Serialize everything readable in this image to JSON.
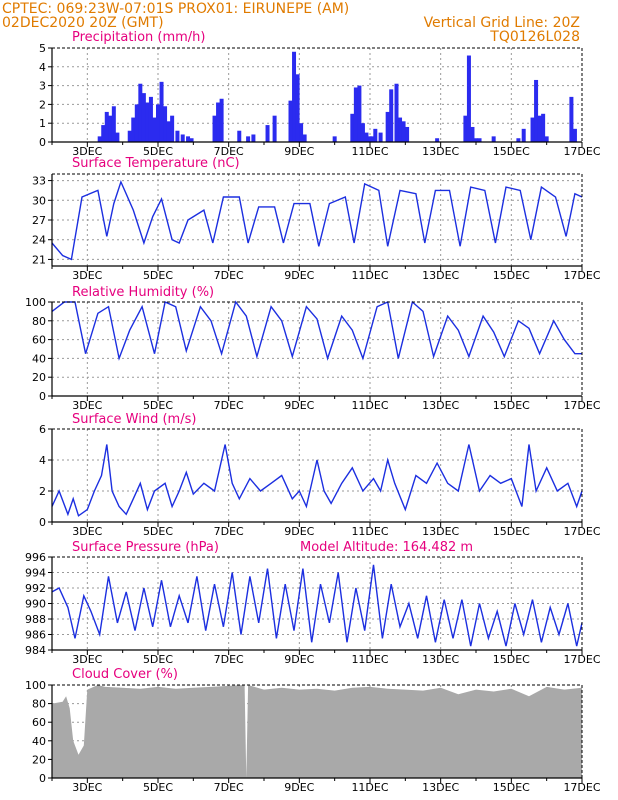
{
  "header": {
    "line1_left": "CPTEC:   069:23W-07:01S   PROX01: EIRUNEPE (AM)",
    "line2_left": "02DEC2020 20Z (GMT)",
    "line2_right": "Vertical Grid Line: 20Z",
    "line3_right": "TQ0126L028"
  },
  "x_axis": {
    "start_day": 2,
    "end_day": 17,
    "tick_labels": [
      "3DEC",
      "5DEC",
      "7DEC",
      "9DEC",
      "11DEC",
      "13DEC",
      "15DEC",
      "17DEC"
    ]
  },
  "colors": {
    "line": "#1c2fe0",
    "bar": "#2b2bef",
    "cloud": "#a9a9a9",
    "title": "#e6007e",
    "header": "#e07b00"
  },
  "chart_data": [
    {
      "type": "bar",
      "title": "Precipitation (mm/h)",
      "ylim": [
        0,
        5
      ],
      "yticks": [
        0,
        1,
        2,
        3,
        4,
        5
      ],
      "grid": true,
      "x_unit": "day of December 2020 (fractional)",
      "x": [
        3.35,
        3.45,
        3.55,
        3.65,
        3.75,
        3.85,
        4.2,
        4.3,
        4.4,
        4.5,
        4.6,
        4.7,
        4.8,
        4.9,
        5.0,
        5.1,
        5.2,
        5.3,
        5.4,
        5.55,
        5.7,
        5.85,
        5.95,
        6.6,
        6.7,
        6.8,
        7.3,
        7.55,
        7.7,
        8.1,
        8.3,
        8.75,
        8.85,
        8.95,
        9.05,
        9.15,
        10.0,
        10.5,
        10.6,
        10.7,
        10.8,
        10.9,
        11.0,
        11.05,
        11.15,
        11.3,
        11.5,
        11.6,
        11.75,
        11.85,
        11.95,
        12.05,
        12.9,
        13.7,
        13.8,
        13.9,
        14.0,
        14.1,
        14.5,
        15.2,
        15.35,
        15.6,
        15.7,
        15.8,
        15.9,
        16.0,
        16.7,
        16.8
      ],
      "values": [
        0.3,
        0.9,
        1.6,
        1.4,
        1.9,
        0.5,
        0.6,
        1.3,
        2.0,
        3.1,
        2.6,
        2.1,
        2.4,
        1.3,
        2.0,
        3.2,
        1.9,
        1.1,
        1.4,
        0.6,
        0.4,
        0.3,
        0.2,
        1.4,
        2.1,
        2.3,
        0.6,
        0.3,
        0.4,
        0.9,
        1.4,
        2.2,
        4.8,
        3.6,
        1.0,
        0.4,
        0.3,
        1.5,
        2.9,
        3.0,
        1.0,
        0.5,
        0.3,
        0.3,
        0.7,
        0.5,
        1.6,
        2.8,
        3.1,
        1.3,
        1.1,
        0.8,
        0.2,
        1.4,
        4.6,
        0.8,
        0.2,
        0.2,
        0.3,
        0.2,
        0.7,
        1.3,
        3.3,
        1.4,
        1.5,
        0.3,
        2.4,
        0.7
      ]
    },
    {
      "type": "line",
      "title": "Surface Temperature (nC)",
      "ylim": [
        20,
        34
      ],
      "yticks": [
        21,
        24,
        27,
        30,
        33
      ],
      "grid": true,
      "x": [
        2.0,
        2.3,
        2.55,
        2.85,
        3.3,
        3.55,
        3.75,
        3.95,
        4.3,
        4.6,
        4.85,
        5.1,
        5.4,
        5.6,
        5.85,
        6.3,
        6.55,
        6.85,
        7.3,
        7.55,
        7.85,
        8.3,
        8.55,
        8.85,
        9.3,
        9.55,
        9.85,
        10.3,
        10.55,
        10.85,
        11.25,
        11.5,
        11.85,
        12.3,
        12.55,
        12.85,
        13.25,
        13.55,
        13.85,
        14.25,
        14.55,
        14.85,
        15.25,
        15.55,
        15.85,
        16.25,
        16.55,
        16.8,
        17.0
      ],
      "values": [
        23.5,
        21.6,
        21.0,
        30.5,
        31.5,
        24.5,
        29.5,
        32.8,
        28.5,
        23.5,
        27.5,
        30.2,
        24.0,
        23.5,
        27.0,
        28.5,
        23.5,
        30.5,
        30.5,
        23.5,
        29.0,
        29.0,
        23.5,
        29.5,
        29.5,
        23.0,
        29.5,
        30.5,
        23.5,
        32.5,
        31.5,
        23.0,
        31.5,
        31.0,
        23.5,
        31.5,
        31.5,
        23.0,
        32.0,
        31.5,
        23.5,
        32.0,
        31.5,
        24.0,
        32.0,
        30.5,
        24.5,
        31.0,
        30.5
      ]
    },
    {
      "type": "line",
      "title": "Relative Humidity (%)",
      "ylim": [
        0,
        100
      ],
      "yticks": [
        0,
        20,
        40,
        60,
        80,
        100
      ],
      "grid": true,
      "x": [
        2.0,
        2.35,
        2.65,
        2.95,
        3.3,
        3.6,
        3.9,
        4.2,
        4.55,
        4.9,
        5.2,
        5.5,
        5.8,
        6.2,
        6.5,
        6.8,
        7.2,
        7.5,
        7.8,
        8.2,
        8.5,
        8.8,
        9.2,
        9.5,
        9.8,
        10.2,
        10.5,
        10.8,
        11.2,
        11.5,
        11.8,
        12.2,
        12.5,
        12.8,
        13.2,
        13.5,
        13.8,
        14.2,
        14.5,
        14.8,
        15.2,
        15.5,
        15.8,
        16.2,
        16.5,
        16.8,
        17.0
      ],
      "values": [
        90,
        100,
        100,
        45,
        88,
        95,
        40,
        70,
        95,
        45,
        100,
        95,
        48,
        95,
        80,
        45,
        100,
        85,
        42,
        95,
        80,
        42,
        95,
        82,
        40,
        85,
        70,
        40,
        95,
        100,
        40,
        100,
        90,
        42,
        85,
        70,
        42,
        85,
        68,
        42,
        80,
        72,
        45,
        80,
        60,
        45,
        45
      ]
    },
    {
      "type": "line",
      "title": "Surface Wind (m/s)",
      "ylim": [
        0,
        6
      ],
      "yticks": [
        0,
        2,
        4,
        6
      ],
      "grid": true,
      "x": [
        2.0,
        2.2,
        2.45,
        2.6,
        2.75,
        3.0,
        3.2,
        3.4,
        3.55,
        3.7,
        3.9,
        4.1,
        4.3,
        4.5,
        4.7,
        4.9,
        5.2,
        5.4,
        5.6,
        5.8,
        6.0,
        6.3,
        6.6,
        6.9,
        7.1,
        7.3,
        7.6,
        7.9,
        8.2,
        8.5,
        8.8,
        9.0,
        9.2,
        9.5,
        9.7,
        9.9,
        10.2,
        10.5,
        10.8,
        11.1,
        11.3,
        11.5,
        11.7,
        12.0,
        12.3,
        12.6,
        12.9,
        13.2,
        13.5,
        13.8,
        14.1,
        14.4,
        14.7,
        15.0,
        15.3,
        15.5,
        15.7,
        16.0,
        16.3,
        16.6,
        16.85,
        17.0
      ],
      "values": [
        1.0,
        2.0,
        0.5,
        1.5,
        0.4,
        0.8,
        2.0,
        3.0,
        5.0,
        2.0,
        1.0,
        0.5,
        1.5,
        2.5,
        0.8,
        2.0,
        2.5,
        1.0,
        2.0,
        3.2,
        1.8,
        2.5,
        2.0,
        5.0,
        2.5,
        1.5,
        2.8,
        2.0,
        2.5,
        3.0,
        1.5,
        2.0,
        1.0,
        4.0,
        2.0,
        1.2,
        2.5,
        3.5,
        2.0,
        2.8,
        2.0,
        4.0,
        2.5,
        0.8,
        3.0,
        2.5,
        3.8,
        2.5,
        2.0,
        5.0,
        2.0,
        3.0,
        2.5,
        2.8,
        1.0,
        5.0,
        2.0,
        3.5,
        2.0,
        2.5,
        1.0,
        2.0
      ]
    },
    {
      "type": "line",
      "title": "Surface Pressure (hPa)",
      "subtitle": "Model Altitude: 164.482 m",
      "ylim": [
        984,
        996
      ],
      "yticks": [
        984,
        986,
        988,
        990,
        992,
        994,
        996
      ],
      "grid": true,
      "x": [
        2.0,
        2.2,
        2.45,
        2.65,
        2.9,
        3.1,
        3.35,
        3.6,
        3.85,
        4.1,
        4.35,
        4.6,
        4.85,
        5.1,
        5.35,
        5.6,
        5.85,
        6.1,
        6.35,
        6.6,
        6.85,
        7.1,
        7.35,
        7.6,
        7.85,
        8.1,
        8.35,
        8.6,
        8.85,
        9.1,
        9.35,
        9.6,
        9.85,
        10.1,
        10.35,
        10.6,
        10.85,
        11.1,
        11.35,
        11.6,
        11.85,
        12.1,
        12.35,
        12.6,
        12.85,
        13.1,
        13.35,
        13.6,
        13.85,
        14.1,
        14.35,
        14.6,
        14.85,
        15.1,
        15.35,
        15.6,
        15.85,
        16.1,
        16.35,
        16.6,
        16.85,
        17.0
      ],
      "values": [
        991.5,
        992.0,
        989.5,
        985.5,
        991.0,
        989.0,
        986.0,
        993.5,
        987.5,
        991.5,
        986.5,
        992.0,
        987.0,
        993.0,
        987.0,
        991.0,
        987.5,
        993.5,
        986.5,
        992.5,
        987.0,
        994.0,
        986.0,
        993.5,
        987.5,
        994.5,
        985.5,
        992.5,
        986.5,
        994.5,
        985.0,
        992.5,
        987.5,
        994.0,
        985.0,
        992.0,
        986.5,
        995.0,
        985.5,
        992.5,
        987.0,
        990.0,
        985.5,
        991.0,
        985.0,
        990.5,
        985.5,
        990.5,
        984.5,
        990.0,
        985.5,
        989.0,
        984.5,
        990.0,
        986.0,
        990.5,
        985.0,
        989.5,
        986.0,
        990.0,
        984.5,
        987.5
      ]
    },
    {
      "type": "area",
      "title": "Cloud Cover (%)",
      "ylim": [
        0,
        100
      ],
      "yticks": [
        0,
        20,
        40,
        60,
        80,
        100
      ],
      "grid": true,
      "x": [
        2.0,
        2.3,
        2.4,
        2.5,
        2.6,
        2.75,
        2.9,
        3.0,
        3.3,
        3.5,
        4.0,
        4.5,
        5.0,
        5.5,
        6.0,
        6.5,
        7.0,
        7.45,
        7.5,
        7.55,
        8.0,
        8.5,
        9.0,
        9.5,
        10.0,
        10.5,
        11.0,
        11.5,
        12.0,
        12.5,
        13.0,
        13.5,
        14.0,
        14.5,
        15.0,
        15.5,
        16.0,
        16.5,
        17.0
      ],
      "values": [
        80,
        82,
        88,
        75,
        40,
        25,
        35,
        95,
        100,
        98,
        97,
        96,
        98,
        96,
        97,
        98,
        99,
        100,
        0,
        100,
        95,
        97,
        95,
        96,
        94,
        97,
        98,
        96,
        95,
        94,
        97,
        90,
        95,
        93,
        96,
        88,
        98,
        95,
        97
      ]
    }
  ]
}
